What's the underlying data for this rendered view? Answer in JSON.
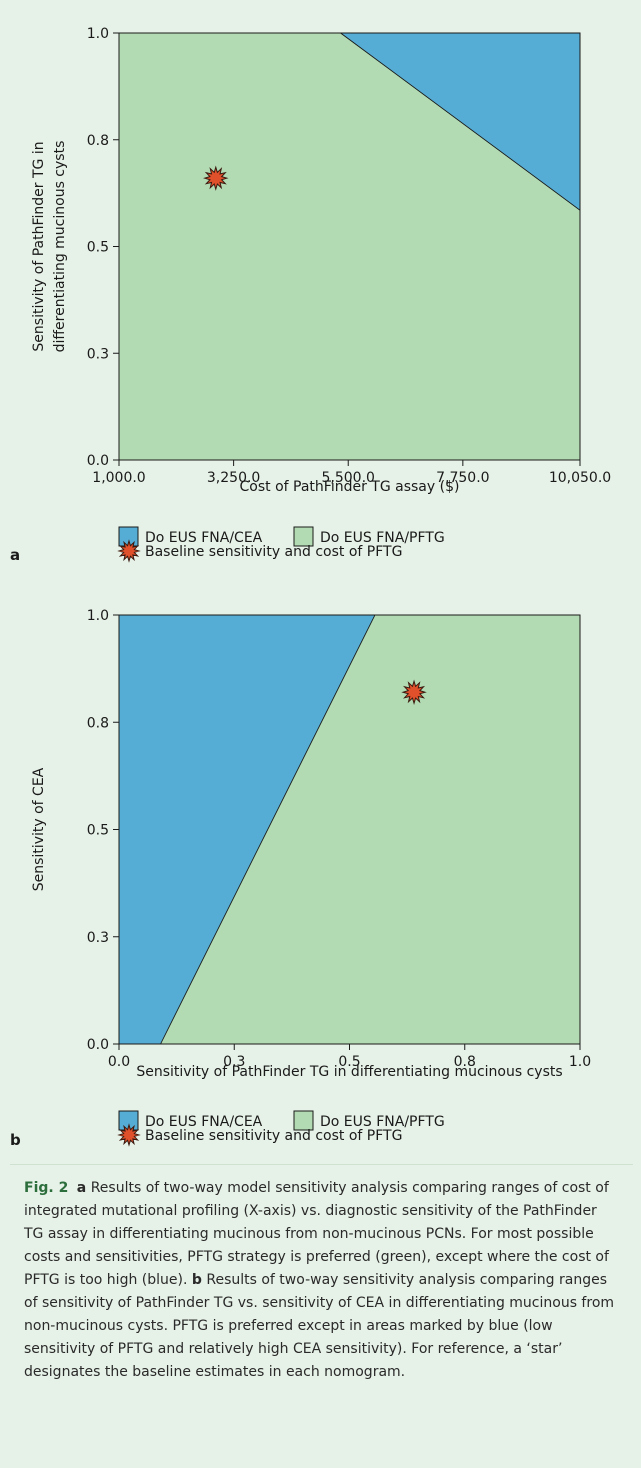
{
  "chart_data": [
    {
      "panel": "a",
      "type": "area",
      "xlabel": "Cost of PathFinder TG assay ($)",
      "ylabel_lines": [
        "Sensitivity of PathFinder TG in",
        "differentiating mucinous cysts"
      ],
      "xlim": [
        1000,
        10050
      ],
      "ylim": [
        0,
        1.0
      ],
      "x_ticks": [
        1000,
        3250,
        5500,
        7750,
        10050
      ],
      "x_tick_labels": [
        "1,000.0",
        "3,250.0",
        "5,500.0",
        "7,750.0",
        "10,050.0"
      ],
      "y_ticks": [
        0,
        0.25,
        0.5,
        0.75,
        1.0
      ],
      "y_tick_labels": [
        "0.0",
        "0.3",
        "0.5",
        "0.8",
        "1.0"
      ],
      "regions": [
        {
          "name": "Do EUS FNA/CEA",
          "color": "#55acd4",
          "polygon": [
            [
              5350,
              1.0
            ],
            [
              10050,
              1.0
            ],
            [
              10050,
              0.585
            ]
          ]
        },
        {
          "name": "Do EUS FNA/PFTG",
          "color": "#b2dbb3",
          "polygon": [
            [
              1000,
              0
            ],
            [
              10050,
              0
            ],
            [
              10050,
              0.585
            ],
            [
              5350,
              1.0
            ],
            [
              1000,
              1.0
            ]
          ]
        }
      ],
      "baseline_point": {
        "name": "Baseline sensitivity and cost of PFTG",
        "x": 2900,
        "y": 0.66
      },
      "legend": [
        {
          "label": "Do EUS FNA/CEA",
          "color": "#55acd4"
        },
        {
          "label": "Do EUS FNA/PFTG",
          "color": "#b2dbb3"
        }
      ],
      "legend_marker_label": "Baseline sensitivity and cost of PFTG",
      "panel_label": "a"
    },
    {
      "panel": "b",
      "type": "area",
      "xlabel": "Sensitivity of PathFinder TG in differentiating mucinous cysts",
      "ylabel_lines": [
        "Sensitivity of CEA"
      ],
      "xlim": [
        0,
        1.0
      ],
      "ylim": [
        0,
        1.0
      ],
      "x_ticks": [
        0,
        0.25,
        0.5,
        0.75,
        1.0
      ],
      "x_tick_labels": [
        "0.0",
        "0.3",
        "0.5",
        "0.8",
        "1.0"
      ],
      "y_ticks": [
        0,
        0.25,
        0.5,
        0.75,
        1.0
      ],
      "y_tick_labels": [
        "0.0",
        "0.3",
        "0.5",
        "0.8",
        "1.0"
      ],
      "regions": [
        {
          "name": "Do EUS FNA/CEA",
          "color": "#55acd4",
          "polygon": [
            [
              0,
              0
            ],
            [
              0.09,
              0
            ],
            [
              0.555,
              1.0
            ],
            [
              0,
              1.0
            ]
          ]
        },
        {
          "name": "Do EUS FNA/PFTG",
          "color": "#b2dbb3",
          "polygon": [
            [
              0.09,
              0
            ],
            [
              1.0,
              0
            ],
            [
              1.0,
              1.0
            ],
            [
              0.555,
              1.0
            ]
          ]
        }
      ],
      "baseline_point": {
        "name": "Baseline sensitivity and cost of PFTG",
        "x": 0.64,
        "y": 0.82
      },
      "legend": [
        {
          "label": "Do EUS FNA/CEA",
          "color": "#55acd4"
        },
        {
          "label": "Do EUS FNA/PFTG",
          "color": "#b2dbb3"
        }
      ],
      "legend_marker_label": "Baseline sensitivity and cost of PFTG",
      "panel_label": "b"
    }
  ],
  "caption": {
    "fig_label": "Fig. 2",
    "a_label": "a",
    "a_text": "Results of two-way model sensitivity analysis comparing ranges of cost of integrated mutational profiling (X-axis) vs. diagnostic sensitivity of the PathFinder TG assay in differentiating mucinous from non-mucinous PCNs. For most possible costs and sensitivities, PFTG strategy is preferred (green), except where the cost of PFTG is too high (blue).",
    "b_label": "b",
    "b_text": "Results of two-way sensitivity analysis comparing ranges of sensitivity of PathFinder TG vs. sensitivity of CEA in differentiating mucinous from non-mucinous cysts. PFTG is preferred except in areas marked by blue (low sensitivity of PFTG and relatively high CEA sensitivity). For reference, a ‘star’ designates the baseline estimates in each nomogram."
  },
  "colors": {
    "cea_blue": "#55acd4",
    "pftg_green": "#b2dbb3",
    "star_red": "#e0502a",
    "caption_bg": "#e6f1e7",
    "fig_label_green": "#2d6e3d"
  },
  "icons": {
    "baseline_marker": "starburst-icon"
  }
}
